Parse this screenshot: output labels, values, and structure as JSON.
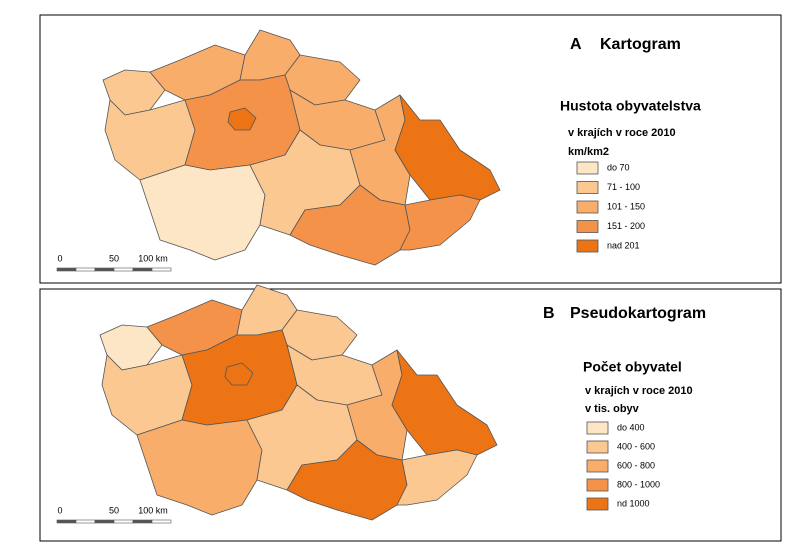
{
  "panels": [
    {
      "letter": "A",
      "title": "Kartogram",
      "legend_title": "Hustota obyvatelstva",
      "legend_subtitle": "v krajích v roce 2010",
      "legend_unit": "km/km2",
      "legend_items": [
        {
          "label": "do 70",
          "color": "#fde6c6"
        },
        {
          "label": "71 - 100",
          "color": "#fbc892"
        },
        {
          "label": "101 - 150",
          "color": "#f9ad6b"
        },
        {
          "label": "151 - 200",
          "color": "#f5924a"
        },
        {
          "label": "nad 201",
          "color": "#ec7414"
        }
      ],
      "scale": [
        "0",
        "50",
        "100 km"
      ]
    },
    {
      "letter": "B",
      "title": "Pseudokartogram",
      "legend_title": "Počet obyvatel",
      "legend_subtitle": "v krajích v roce 2010",
      "legend_unit": "v tis. obyv",
      "legend_items": [
        {
          "label": "do 400",
          "color": "#fde6c6"
        },
        {
          "label": "400 - 600",
          "color": "#fbc892"
        },
        {
          "label": "600 - 800",
          "color": "#f9ad6b"
        },
        {
          "label": "800 - 1000",
          "color": "#f5924a"
        },
        {
          "label": "nd 1000",
          "color": "#ec7414"
        }
      ],
      "scale": [
        "0",
        "50",
        "100 km"
      ]
    }
  ]
}
